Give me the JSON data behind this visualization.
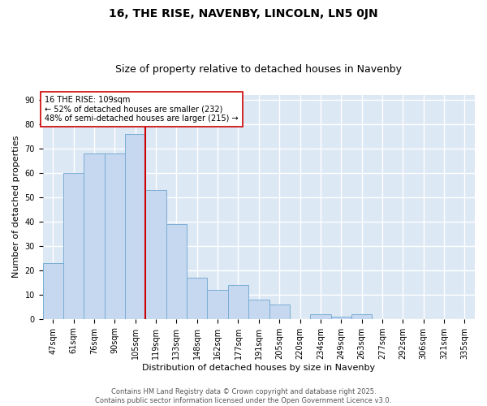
{
  "title1": "16, THE RISE, NAVENBY, LINCOLN, LN5 0JN",
  "title2": "Size of property relative to detached houses in Navenby",
  "xlabel": "Distribution of detached houses by size in Navenby",
  "ylabel": "Number of detached properties",
  "bar_color": "#c5d8f0",
  "bar_edge_color": "#7aadd4",
  "bg_color": "#dde8f5",
  "grid_color": "#ffffff",
  "categories": [
    "47sqm",
    "61sqm",
    "76sqm",
    "90sqm",
    "105sqm",
    "119sqm",
    "133sqm",
    "148sqm",
    "162sqm",
    "177sqm",
    "191sqm",
    "205sqm",
    "220sqm",
    "234sqm",
    "249sqm",
    "263sqm",
    "277sqm",
    "292sqm",
    "306sqm",
    "321sqm",
    "335sqm"
  ],
  "values": [
    23,
    60,
    68,
    68,
    76,
    53,
    39,
    17,
    12,
    14,
    8,
    6,
    0,
    2,
    1,
    2,
    0,
    0,
    0,
    0,
    0
  ],
  "marker_index": 5,
  "marker_label": "16 THE RISE: 109sqm",
  "annotation_line1": "← 52% of detached houses are smaller (232)",
  "annotation_line2": "48% of semi-detached houses are larger (215) →",
  "marker_color": "#cc0000",
  "annotation_box_color": "#ffffff",
  "annotation_box_edge": "#cc0000",
  "ylim": [
    0,
    92
  ],
  "yticks": [
    0,
    10,
    20,
    30,
    40,
    50,
    60,
    70,
    80,
    90
  ],
  "footer_line1": "Contains HM Land Registry data © Crown copyright and database right 2025.",
  "footer_line2": "Contains public sector information licensed under the Open Government Licence v3.0.",
  "title1_fontsize": 10,
  "title2_fontsize": 9,
  "annotation_fontsize": 7,
  "tick_fontsize": 7,
  "ylabel_fontsize": 8,
  "xlabel_fontsize": 8,
  "footer_fontsize": 6
}
